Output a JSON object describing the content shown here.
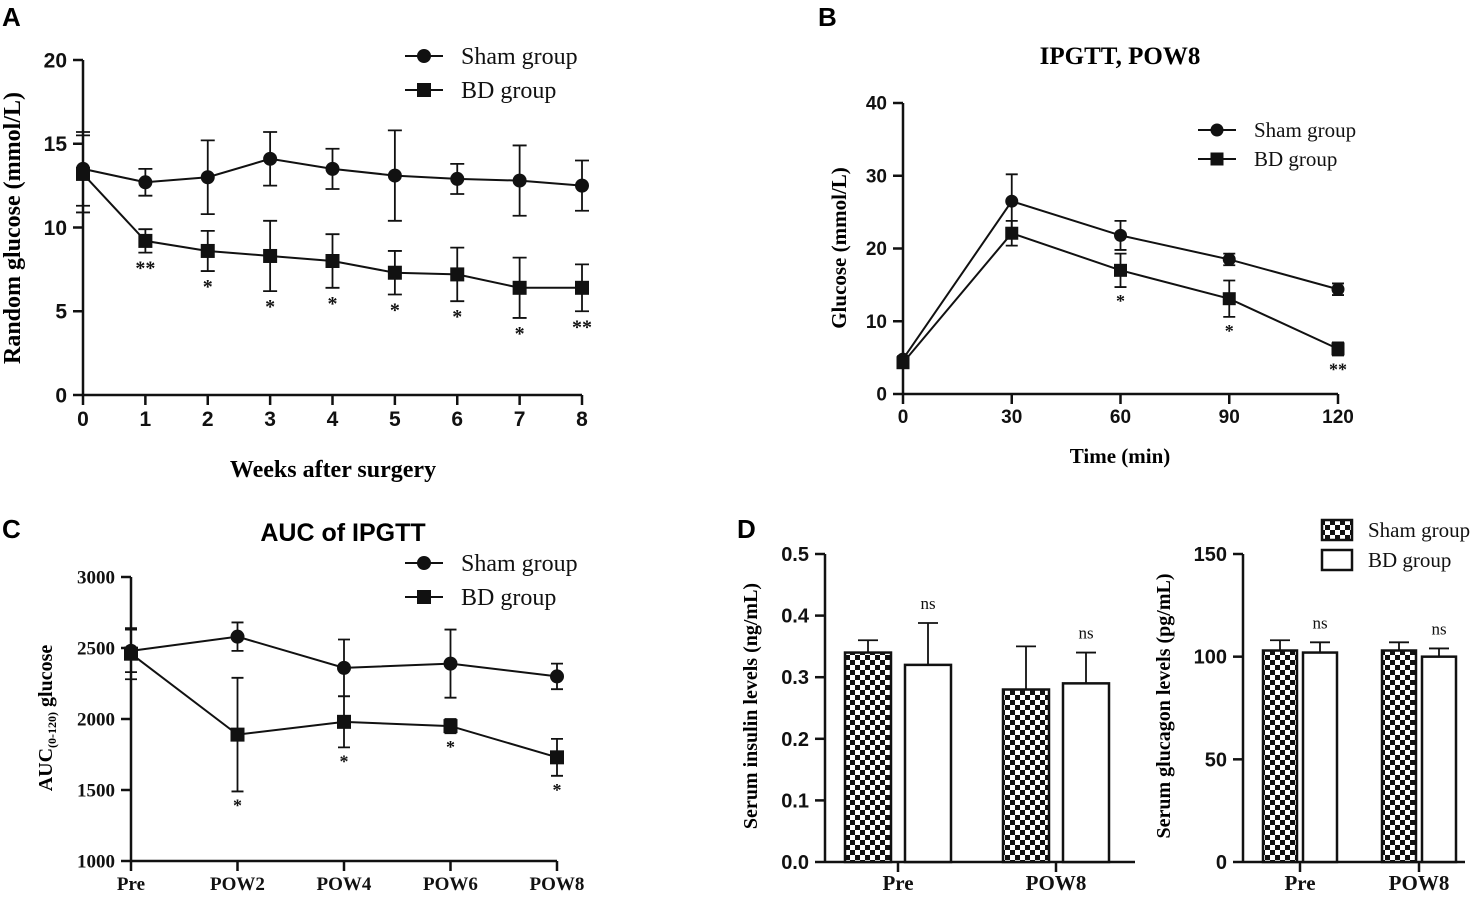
{
  "colors": {
    "ink": "#111111",
    "background": "#ffffff"
  },
  "chart_data": [
    {
      "panel": "A",
      "type": "line",
      "title": "",
      "xlabel": "Weeks after surgery",
      "ylabel": "Random glucose (mmol/L)",
      "x": [
        0,
        1,
        2,
        3,
        4,
        5,
        6,
        7,
        8
      ],
      "xticks": [
        "0",
        "1",
        "2",
        "3",
        "4",
        "5",
        "6",
        "7",
        "8"
      ],
      "xlim": [
        0,
        8
      ],
      "ylim": [
        0,
        20
      ],
      "yticks": [
        "0",
        "5",
        "10",
        "15",
        "20"
      ],
      "legend_position": "top-right",
      "series": [
        {
          "name": "Sham group",
          "marker": "circle",
          "values": [
            13.5,
            12.7,
            13.0,
            14.1,
            13.5,
            13.1,
            12.9,
            12.8,
            12.5
          ],
          "err": [
            2.2,
            0.8,
            2.2,
            1.6,
            1.2,
            2.7,
            0.9,
            2.1,
            1.5
          ]
        },
        {
          "name": "BD group",
          "marker": "square",
          "values": [
            13.2,
            9.2,
            8.6,
            8.3,
            8.0,
            7.3,
            7.2,
            6.4,
            6.4
          ],
          "err": [
            2.3,
            0.7,
            1.2,
            2.1,
            1.6,
            1.3,
            1.6,
            1.8,
            1.4
          ]
        }
      ],
      "annotations": [
        {
          "x": 1,
          "text": "**"
        },
        {
          "x": 2,
          "text": "*"
        },
        {
          "x": 3,
          "text": "*"
        },
        {
          "x": 4,
          "text": "*"
        },
        {
          "x": 5,
          "text": "*"
        },
        {
          "x": 6,
          "text": "*"
        },
        {
          "x": 7,
          "text": "*"
        },
        {
          "x": 8,
          "text": "**"
        }
      ]
    },
    {
      "panel": "B",
      "type": "line",
      "title": "IPGTT, POW8",
      "xlabel": "Time (min)",
      "ylabel": "Glucose (mmol/L)",
      "x": [
        0,
        30,
        60,
        90,
        120
      ],
      "xticks": [
        "0",
        "30",
        "60",
        "90",
        "120"
      ],
      "xlim": [
        0,
        120
      ],
      "ylim": [
        0,
        40
      ],
      "yticks": [
        "0",
        "10",
        "20",
        "30",
        "40"
      ],
      "legend_position": "top-right",
      "series": [
        {
          "name": "Sham group",
          "marker": "circle",
          "values": [
            4.8,
            26.5,
            21.8,
            18.5,
            14.4
          ],
          "err": [
            0.4,
            3.7,
            2.0,
            0.8,
            0.8
          ]
        },
        {
          "name": "BD group",
          "marker": "square",
          "values": [
            4.3,
            22.1,
            17.0,
            13.1,
            6.2
          ],
          "err": [
            0.4,
            1.7,
            2.3,
            2.5,
            0.9
          ]
        }
      ],
      "annotations": [
        {
          "x": 60,
          "text": "*"
        },
        {
          "x": 90,
          "text": "*"
        },
        {
          "x": 120,
          "text": "**"
        }
      ]
    },
    {
      "panel": "C",
      "type": "line",
      "title": "AUC of IPGTT",
      "xlabel": "",
      "ylabel_main": "AUC",
      "ylabel_sub": "(0-120)",
      "ylabel_tail": " glucose",
      "categories": [
        "Pre",
        "POW2",
        "POW4",
        "POW6",
        "POW8"
      ],
      "ylim": [
        1000,
        3000
      ],
      "yticks": [
        "1000",
        "1500",
        "2000",
        "2500",
        "3000"
      ],
      "legend_position": "top-right",
      "series": [
        {
          "name": "Sham group",
          "marker": "circle",
          "values": [
            2480,
            2580,
            2360,
            2390,
            2300
          ],
          "err": [
            150,
            100,
            200,
            240,
            90
          ]
        },
        {
          "name": "BD group",
          "marker": "square",
          "values": [
            2460,
            1890,
            1980,
            1950,
            1730
          ],
          "err": [
            180,
            400,
            180,
            50,
            130
          ]
        }
      ],
      "annotations": [
        {
          "x": 1,
          "text": "*"
        },
        {
          "x": 2,
          "text": "*"
        },
        {
          "x": 3,
          "text": "*"
        },
        {
          "x": 4,
          "text": "*"
        }
      ]
    },
    {
      "panel": "D",
      "type": "bar",
      "title": "",
      "ylabel": "Serum insulin levels (ng/mL)",
      "categories": [
        "Pre",
        "POW8"
      ],
      "ylim": [
        0,
        0.5
      ],
      "yticks": [
        "0.0",
        "0.1",
        "0.2",
        "0.3",
        "0.4",
        "0.5"
      ],
      "series": [
        {
          "name": "Sham group",
          "pattern": "checker",
          "values": [
            0.34,
            0.28
          ],
          "err": [
            0.02,
            0.07
          ]
        },
        {
          "name": "BD group",
          "pattern": "white",
          "values": [
            0.32,
            0.29
          ],
          "err": [
            0.068,
            0.05
          ]
        }
      ],
      "annotations": [
        {
          "x": 0,
          "text": "ns"
        },
        {
          "x": 1,
          "text": "ns"
        }
      ]
    },
    {
      "panel": "D",
      "type": "bar",
      "title": "",
      "ylabel": "Serum glucagon levels (pg/mL)",
      "categories": [
        "Pre",
        "POW8"
      ],
      "ylim": [
        0,
        150
      ],
      "yticks": [
        "0",
        "50",
        "100",
        "150"
      ],
      "legend_position": "top-right",
      "series": [
        {
          "name": "Sham group",
          "pattern": "checker",
          "values": [
            103,
            103
          ],
          "err": [
            5,
            4
          ]
        },
        {
          "name": "BD group",
          "pattern": "white",
          "values": [
            102,
            100
          ],
          "err": [
            5,
            4
          ]
        }
      ],
      "annotations": [
        {
          "x": 0,
          "text": "ns"
        },
        {
          "x": 1,
          "text": "ns"
        }
      ]
    }
  ],
  "panels": {
    "a": "A",
    "b": "B",
    "c": "C",
    "d": "D"
  }
}
